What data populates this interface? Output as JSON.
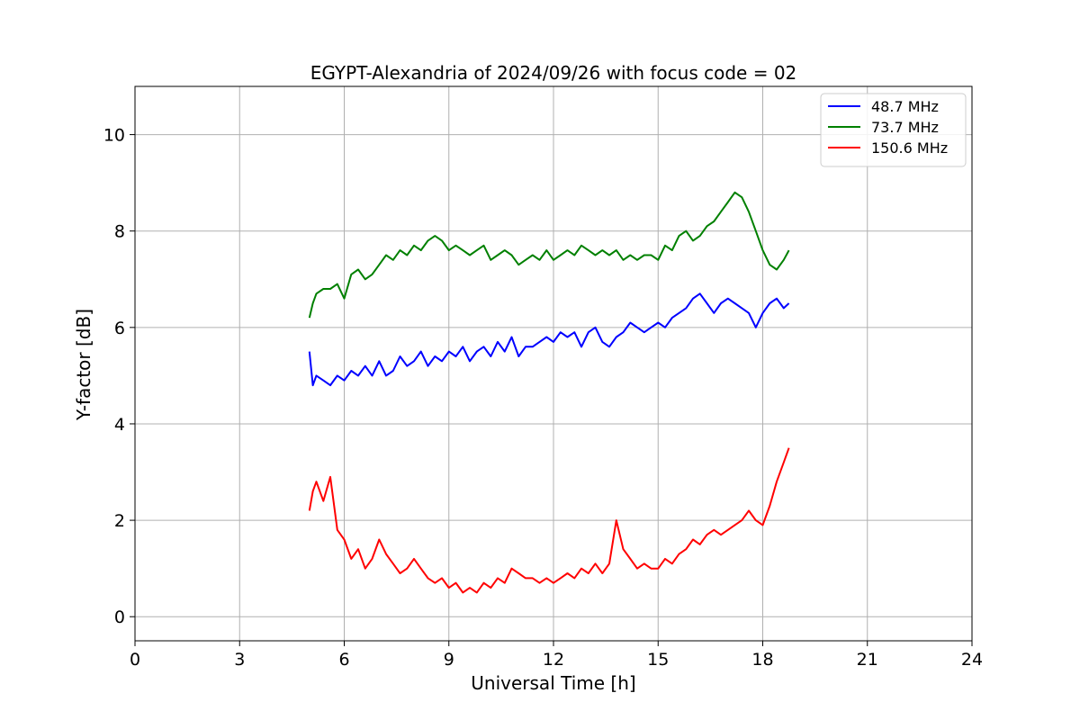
{
  "chart_data": {
    "type": "line",
    "title": "EGYPT-Alexandria of 2024/09/26 with focus code = 02",
    "xlabel": "Universal Time [h]",
    "ylabel": "Y-factor [dB]",
    "xlim": [
      0,
      24
    ],
    "ylim": [
      -0.5,
      11
    ],
    "xticks": [
      0,
      3,
      6,
      9,
      12,
      15,
      18,
      21,
      24
    ],
    "yticks": [
      0,
      2,
      4,
      6,
      8,
      10
    ],
    "grid": true,
    "legend": "top-right",
    "series": [
      {
        "name": "  48.7 MHz",
        "color": "#0000ff",
        "x": [
          5.0,
          5.1,
          5.2,
          5.4,
          5.6,
          5.8,
          6.0,
          6.2,
          6.4,
          6.6,
          6.8,
          7.0,
          7.2,
          7.4,
          7.6,
          7.8,
          8.0,
          8.2,
          8.4,
          8.6,
          8.8,
          9.0,
          9.2,
          9.4,
          9.6,
          9.8,
          10.0,
          10.2,
          10.4,
          10.6,
          10.8,
          11.0,
          11.2,
          11.4,
          11.6,
          11.8,
          12.0,
          12.2,
          12.4,
          12.6,
          12.8,
          13.0,
          13.2,
          13.4,
          13.6,
          13.8,
          14.0,
          14.2,
          14.4,
          14.6,
          14.8,
          15.0,
          15.2,
          15.4,
          15.6,
          15.8,
          16.0,
          16.2,
          16.4,
          16.6,
          16.8,
          17.0,
          17.2,
          17.4,
          17.6,
          17.8,
          18.0,
          18.2,
          18.4,
          18.6,
          18.75
        ],
        "y": [
          5.5,
          4.8,
          5.0,
          4.9,
          4.8,
          5.0,
          4.9,
          5.1,
          5.0,
          5.2,
          5.0,
          5.3,
          5.0,
          5.1,
          5.4,
          5.2,
          5.3,
          5.5,
          5.2,
          5.4,
          5.3,
          5.5,
          5.4,
          5.6,
          5.3,
          5.5,
          5.6,
          5.4,
          5.7,
          5.5,
          5.8,
          5.4,
          5.6,
          5.6,
          5.7,
          5.8,
          5.7,
          5.9,
          5.8,
          5.9,
          5.6,
          5.9,
          6.0,
          5.7,
          5.6,
          5.8,
          5.9,
          6.1,
          6.0,
          5.9,
          6.0,
          6.1,
          6.0,
          6.2,
          6.3,
          6.4,
          6.6,
          6.7,
          6.5,
          6.3,
          6.5,
          6.6,
          6.5,
          6.4,
          6.3,
          6.0,
          6.3,
          6.5,
          6.6,
          6.4,
          6.5
        ]
      },
      {
        "name": "  73.7 MHz",
        "color": "#008000",
        "x": [
          5.0,
          5.1,
          5.2,
          5.4,
          5.6,
          5.8,
          6.0,
          6.2,
          6.4,
          6.6,
          6.8,
          7.0,
          7.2,
          7.4,
          7.6,
          7.8,
          8.0,
          8.2,
          8.4,
          8.6,
          8.8,
          9.0,
          9.2,
          9.4,
          9.6,
          9.8,
          10.0,
          10.2,
          10.4,
          10.6,
          10.8,
          11.0,
          11.2,
          11.4,
          11.6,
          11.8,
          12.0,
          12.2,
          12.4,
          12.6,
          12.8,
          13.0,
          13.2,
          13.4,
          13.6,
          13.8,
          14.0,
          14.2,
          14.4,
          14.6,
          14.8,
          15.0,
          15.2,
          15.4,
          15.6,
          15.8,
          16.0,
          16.2,
          16.4,
          16.6,
          16.8,
          17.0,
          17.2,
          17.4,
          17.6,
          17.8,
          18.0,
          18.2,
          18.4,
          18.6,
          18.75
        ],
        "y": [
          6.2,
          6.5,
          6.7,
          6.8,
          6.8,
          6.9,
          6.6,
          7.1,
          7.2,
          7.0,
          7.1,
          7.3,
          7.5,
          7.4,
          7.6,
          7.5,
          7.7,
          7.6,
          7.8,
          7.9,
          7.8,
          7.6,
          7.7,
          7.6,
          7.5,
          7.6,
          7.7,
          7.4,
          7.5,
          7.6,
          7.5,
          7.3,
          7.4,
          7.5,
          7.4,
          7.6,
          7.4,
          7.5,
          7.6,
          7.5,
          7.7,
          7.6,
          7.5,
          7.6,
          7.5,
          7.6,
          7.4,
          7.5,
          7.4,
          7.5,
          7.5,
          7.4,
          7.7,
          7.6,
          7.9,
          8.0,
          7.8,
          7.9,
          8.1,
          8.2,
          8.4,
          8.6,
          8.8,
          8.7,
          8.4,
          8.0,
          7.6,
          7.3,
          7.2,
          7.4,
          7.6
        ]
      },
      {
        "name": "150.6 MHz",
        "color": "#ff0000",
        "x": [
          5.0,
          5.1,
          5.2,
          5.4,
          5.6,
          5.8,
          6.0,
          6.2,
          6.4,
          6.6,
          6.8,
          7.0,
          7.2,
          7.4,
          7.6,
          7.8,
          8.0,
          8.2,
          8.4,
          8.6,
          8.8,
          9.0,
          9.2,
          9.4,
          9.6,
          9.8,
          10.0,
          10.2,
          10.4,
          10.6,
          10.8,
          11.0,
          11.2,
          11.4,
          11.6,
          11.8,
          12.0,
          12.2,
          12.4,
          12.6,
          12.8,
          13.0,
          13.2,
          13.4,
          13.6,
          13.8,
          14.0,
          14.2,
          14.4,
          14.6,
          14.8,
          15.0,
          15.2,
          15.4,
          15.6,
          15.8,
          16.0,
          16.2,
          16.4,
          16.6,
          16.8,
          17.0,
          17.2,
          17.4,
          17.6,
          17.8,
          18.0,
          18.2,
          18.4,
          18.6,
          18.75
        ],
        "y": [
          2.2,
          2.6,
          2.8,
          2.4,
          2.9,
          1.8,
          1.6,
          1.2,
          1.4,
          1.0,
          1.2,
          1.6,
          1.3,
          1.1,
          0.9,
          1.0,
          1.2,
          1.0,
          0.8,
          0.7,
          0.8,
          0.6,
          0.7,
          0.5,
          0.6,
          0.5,
          0.7,
          0.6,
          0.8,
          0.7,
          1.0,
          0.9,
          0.8,
          0.8,
          0.7,
          0.8,
          0.7,
          0.8,
          0.9,
          0.8,
          1.0,
          0.9,
          1.1,
          0.9,
          1.1,
          2.0,
          1.4,
          1.2,
          1.0,
          1.1,
          1.0,
          1.0,
          1.2,
          1.1,
          1.3,
          1.4,
          1.6,
          1.5,
          1.7,
          1.8,
          1.7,
          1.8,
          1.9,
          2.0,
          2.2,
          2.0,
          1.9,
          2.3,
          2.8,
          3.2,
          3.5
        ]
      }
    ]
  }
}
